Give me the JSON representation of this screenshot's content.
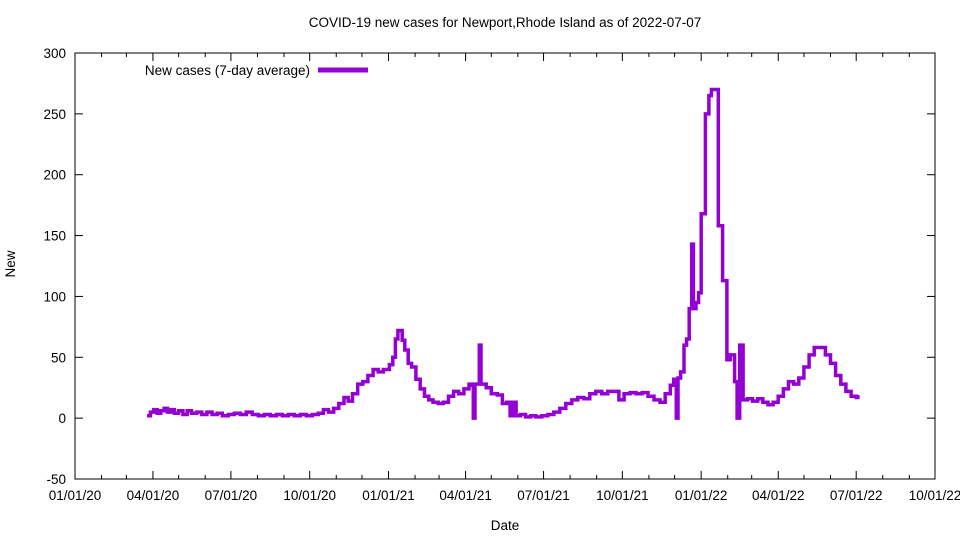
{
  "chart": {
    "background": "#ffffff",
    "border_color": "#000000",
    "accent_color": "#9400d3"
  },
  "chart_data": {
    "type": "line",
    "style": "steps",
    "title": "COVID-19 new cases for Newport,Rhode Island as of 2022-07-07",
    "xlabel": "Date",
    "ylabel": "New",
    "grid": false,
    "legend_position": "top-left-inside",
    "ylim": [
      -50,
      300
    ],
    "xlim": [
      "2020-01-01",
      "2022-10-01"
    ],
    "y_ticks": [
      -50,
      0,
      50,
      100,
      150,
      200,
      250,
      300
    ],
    "x_ticks": [
      {
        "date": "2020-01-01",
        "label": "01/01/20"
      },
      {
        "date": "2020-04-01",
        "label": "04/01/20"
      },
      {
        "date": "2020-07-01",
        "label": "07/01/20"
      },
      {
        "date": "2020-10-01",
        "label": "10/01/20"
      },
      {
        "date": "2021-01-01",
        "label": "01/01/21"
      },
      {
        "date": "2021-04-01",
        "label": "04/01/21"
      },
      {
        "date": "2021-07-01",
        "label": "07/01/21"
      },
      {
        "date": "2021-10-01",
        "label": "10/01/21"
      },
      {
        "date": "2022-01-01",
        "label": "01/01/22"
      },
      {
        "date": "2022-04-01",
        "label": "04/01/22"
      },
      {
        "date": "2022-07-01",
        "label": "07/01/22"
      },
      {
        "date": "2022-10-01",
        "label": "10/01/22"
      }
    ],
    "series": [
      {
        "name": "New cases (7-day average)",
        "color": "#9400d3",
        "points": [
          [
            "2020-03-25",
            2
          ],
          [
            "2020-03-29",
            5
          ],
          [
            "2020-04-02",
            7
          ],
          [
            "2020-04-06",
            4
          ],
          [
            "2020-04-10",
            6
          ],
          [
            "2020-04-14",
            8
          ],
          [
            "2020-04-18",
            5
          ],
          [
            "2020-04-22",
            7
          ],
          [
            "2020-04-26",
            4
          ],
          [
            "2020-05-01",
            6
          ],
          [
            "2020-05-06",
            3
          ],
          [
            "2020-05-11",
            6
          ],
          [
            "2020-05-16",
            4
          ],
          [
            "2020-05-22",
            5
          ],
          [
            "2020-05-28",
            3
          ],
          [
            "2020-06-03",
            5
          ],
          [
            "2020-06-09",
            3
          ],
          [
            "2020-06-15",
            4
          ],
          [
            "2020-06-21",
            2
          ],
          [
            "2020-06-28",
            3
          ],
          [
            "2020-07-05",
            4
          ],
          [
            "2020-07-12",
            3
          ],
          [
            "2020-07-19",
            5
          ],
          [
            "2020-07-26",
            3
          ],
          [
            "2020-08-02",
            2
          ],
          [
            "2020-08-09",
            3
          ],
          [
            "2020-08-16",
            2
          ],
          [
            "2020-08-23",
            3
          ],
          [
            "2020-08-30",
            2
          ],
          [
            "2020-09-06",
            3
          ],
          [
            "2020-09-13",
            2
          ],
          [
            "2020-09-20",
            3
          ],
          [
            "2020-09-27",
            2
          ],
          [
            "2020-10-04",
            3
          ],
          [
            "2020-10-11",
            4
          ],
          [
            "2020-10-17",
            7
          ],
          [
            "2020-10-23",
            5
          ],
          [
            "2020-10-29",
            8
          ],
          [
            "2020-11-04",
            12
          ],
          [
            "2020-11-10",
            17
          ],
          [
            "2020-11-15",
            14
          ],
          [
            "2020-11-20",
            20
          ],
          [
            "2020-11-26",
            28
          ],
          [
            "2020-12-02",
            30
          ],
          [
            "2020-12-08",
            35
          ],
          [
            "2020-12-14",
            40
          ],
          [
            "2020-12-20",
            38
          ],
          [
            "2020-12-26",
            40
          ],
          [
            "2021-01-02",
            44
          ],
          [
            "2021-01-06",
            50
          ],
          [
            "2021-01-09",
            65
          ],
          [
            "2021-01-12",
            72
          ],
          [
            "2021-01-17",
            64
          ],
          [
            "2021-01-20",
            56
          ],
          [
            "2021-01-24",
            45
          ],
          [
            "2021-01-28",
            42
          ],
          [
            "2021-02-02",
            32
          ],
          [
            "2021-02-07",
            24
          ],
          [
            "2021-02-12",
            18
          ],
          [
            "2021-02-17",
            15
          ],
          [
            "2021-02-22",
            13
          ],
          [
            "2021-02-28",
            12
          ],
          [
            "2021-03-06",
            13
          ],
          [
            "2021-03-12",
            18
          ],
          [
            "2021-03-18",
            22
          ],
          [
            "2021-03-24",
            20
          ],
          [
            "2021-03-30",
            24
          ],
          [
            "2021-04-05",
            28
          ],
          [
            "2021-04-09",
            27
          ],
          [
            "2021-04-10",
            0
          ],
          [
            "2021-04-12",
            28
          ],
          [
            "2021-04-17",
            60
          ],
          [
            "2021-04-19",
            28
          ],
          [
            "2021-04-25",
            25
          ],
          [
            "2021-05-01",
            20
          ],
          [
            "2021-05-08",
            19
          ],
          [
            "2021-05-14",
            12
          ],
          [
            "2021-05-19",
            13
          ],
          [
            "2021-05-23",
            2
          ],
          [
            "2021-05-26",
            13
          ],
          [
            "2021-05-30",
            2
          ],
          [
            "2021-06-04",
            3
          ],
          [
            "2021-06-10",
            1
          ],
          [
            "2021-06-16",
            2
          ],
          [
            "2021-06-22",
            1
          ],
          [
            "2021-06-29",
            2
          ],
          [
            "2021-07-06",
            3
          ],
          [
            "2021-07-13",
            5
          ],
          [
            "2021-07-20",
            8
          ],
          [
            "2021-07-27",
            12
          ],
          [
            "2021-08-03",
            15
          ],
          [
            "2021-08-10",
            17
          ],
          [
            "2021-08-17",
            16
          ],
          [
            "2021-08-24",
            20
          ],
          [
            "2021-08-31",
            22
          ],
          [
            "2021-09-07",
            20
          ],
          [
            "2021-09-14",
            22
          ],
          [
            "2021-09-21",
            22
          ],
          [
            "2021-09-27",
            15
          ],
          [
            "2021-10-03",
            20
          ],
          [
            "2021-10-10",
            21
          ],
          [
            "2021-10-17",
            20
          ],
          [
            "2021-10-24",
            21
          ],
          [
            "2021-10-31",
            18
          ],
          [
            "2021-11-07",
            15
          ],
          [
            "2021-11-14",
            13
          ],
          [
            "2021-11-20",
            20
          ],
          [
            "2021-11-26",
            27
          ],
          [
            "2021-11-30",
            32
          ],
          [
            "2021-12-03",
            0
          ],
          [
            "2021-12-05",
            33
          ],
          [
            "2021-12-08",
            38
          ],
          [
            "2021-12-12",
            60
          ],
          [
            "2021-12-15",
            65
          ],
          [
            "2021-12-18",
            90
          ],
          [
            "2021-12-21",
            143
          ],
          [
            "2021-12-23",
            90
          ],
          [
            "2021-12-26",
            95
          ],
          [
            "2021-12-29",
            103
          ],
          [
            "2022-01-01",
            168
          ],
          [
            "2022-01-06",
            250
          ],
          [
            "2022-01-10",
            265
          ],
          [
            "2022-01-13",
            270
          ],
          [
            "2022-01-21",
            158
          ],
          [
            "2022-01-26",
            113
          ],
          [
            "2022-01-31",
            48
          ],
          [
            "2022-02-04",
            52
          ],
          [
            "2022-02-09",
            30
          ],
          [
            "2022-02-12",
            0
          ],
          [
            "2022-02-15",
            60
          ],
          [
            "2022-02-19",
            15
          ],
          [
            "2022-02-24",
            16
          ],
          [
            "2022-03-02",
            14
          ],
          [
            "2022-03-08",
            16
          ],
          [
            "2022-03-14",
            13
          ],
          [
            "2022-03-20",
            11
          ],
          [
            "2022-03-26",
            13
          ],
          [
            "2022-04-01",
            18
          ],
          [
            "2022-04-07",
            24
          ],
          [
            "2022-04-13",
            30
          ],
          [
            "2022-04-19",
            28
          ],
          [
            "2022-04-25",
            33
          ],
          [
            "2022-05-01",
            42
          ],
          [
            "2022-05-07",
            52
          ],
          [
            "2022-05-13",
            58
          ],
          [
            "2022-05-20",
            58
          ],
          [
            "2022-05-26",
            52
          ],
          [
            "2022-06-01",
            45
          ],
          [
            "2022-06-07",
            35
          ],
          [
            "2022-06-13",
            28
          ],
          [
            "2022-06-19",
            22
          ],
          [
            "2022-06-25",
            18
          ],
          [
            "2022-07-01",
            17
          ],
          [
            "2022-07-03",
            19
          ]
        ]
      }
    ]
  }
}
